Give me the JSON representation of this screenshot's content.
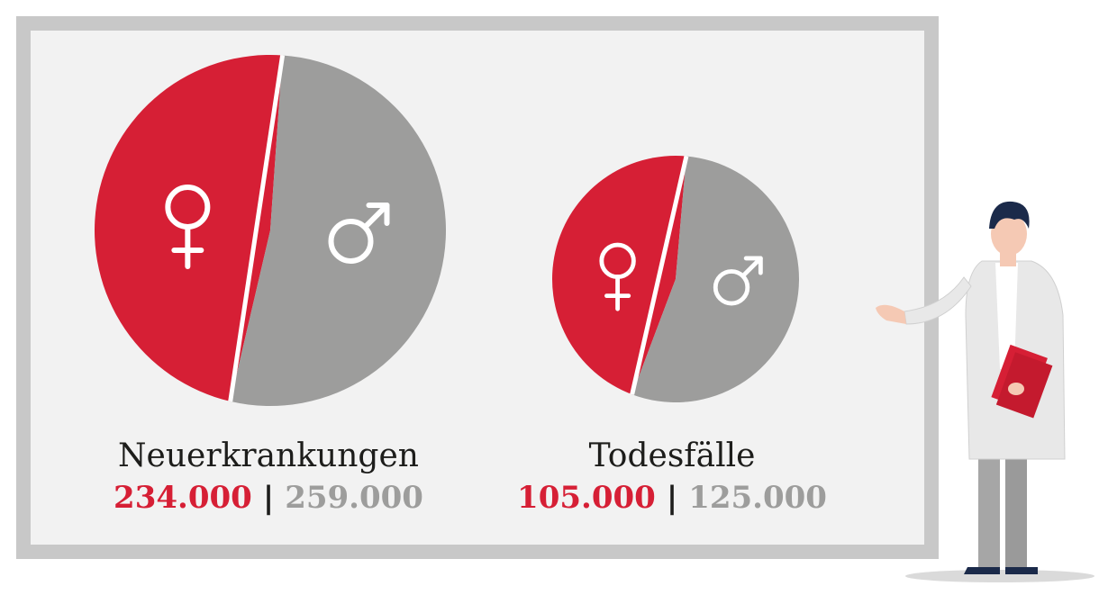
{
  "colors": {
    "female": "#d61f35",
    "male": "#9d9d9c",
    "divider": "#ffffff"
  },
  "icons": {
    "female": "female-symbol-icon",
    "male": "male-symbol-icon"
  },
  "chart_data": [
    {
      "type": "pie",
      "title": "Neuerkrankungen",
      "labels": [
        "234.000",
        "259.000"
      ],
      "values": [
        234000,
        259000
      ],
      "separator": "|"
    },
    {
      "type": "pie",
      "title": "Todesfälle",
      "labels": [
        "105.000",
        "125.000"
      ],
      "values": [
        105000,
        125000
      ],
      "separator": "|"
    }
  ]
}
